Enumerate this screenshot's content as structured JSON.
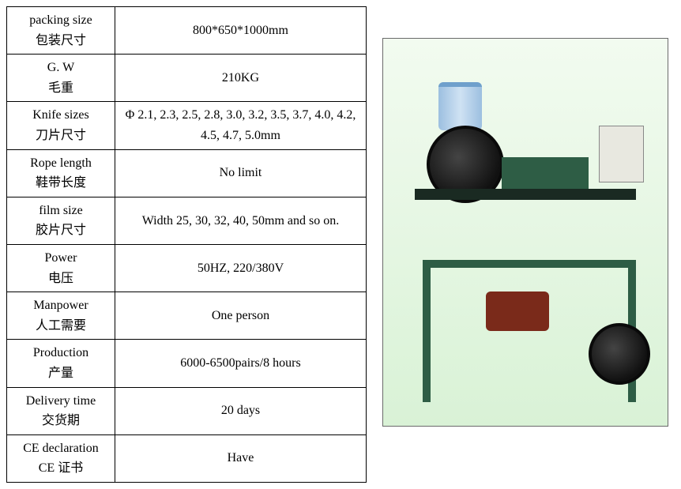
{
  "rows": [
    {
      "label_en": "packing size",
      "label_zh": "包装尺寸",
      "value": "800*650*1000mm"
    },
    {
      "label_en": "G. W",
      "label_zh": "毛重",
      "value": "210KG"
    },
    {
      "label_en": "Knife sizes",
      "label_zh": "刀片尺寸",
      "value": "Φ 2.1, 2.3, 2.5, 2.8, 3.0, 3.2, 3.5, 3.7, 4.0, 4.2, 4.5, 4.7, 5.0mm"
    },
    {
      "label_en": "Rope length",
      "label_zh": "鞋带长度",
      "value": "No limit"
    },
    {
      "label_en": "film size",
      "label_zh": "胶片尺寸",
      "value": "Width 25, 30, 32, 40, 50mm and so on."
    },
    {
      "label_en": "Power",
      "label_zh": "电压",
      "value": "50HZ, 220/380V"
    },
    {
      "label_en": "Manpower",
      "label_zh": "人工需要",
      "value": "One person"
    },
    {
      "label_en": "Production",
      "label_zh": "产量",
      "value": "6000-6500pairs/8 hours"
    },
    {
      "label_en": "Delivery time",
      "label_zh": "交货期",
      "value": "20 days"
    },
    {
      "label_en": "CE declaration",
      "label_zh": "CE  证书",
      "value": "Have"
    }
  ]
}
